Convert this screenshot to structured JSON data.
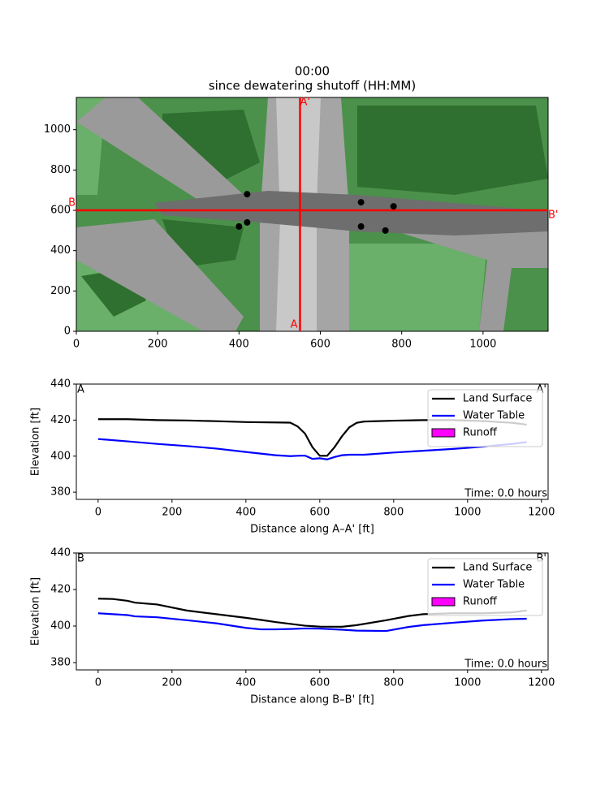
{
  "chart_data": [
    {
      "type": "map",
      "title": "00:00",
      "subtitle": "since dewatering shutoff (HH:MM)",
      "xlim": [
        0,
        1160
      ],
      "ylim": [
        0,
        1160
      ],
      "xticks": [
        0,
        200,
        400,
        600,
        800,
        1000
      ],
      "yticks": [
        0,
        200,
        400,
        600,
        800,
        1000
      ],
      "wells": {
        "color": "#000000",
        "x": [
          420,
          400,
          420,
          700,
          700,
          780,
          760
        ],
        "y": [
          680,
          520,
          540,
          640,
          520,
          620,
          500
        ]
      },
      "section_color": "#ff0000",
      "sections": [
        {
          "start_label": "A",
          "end_label": "A'",
          "x": [
            550,
            550
          ],
          "y": [
            0,
            1160
          ]
        },
        {
          "start_label": "B",
          "end_label": "B'",
          "x": [
            0,
            1160
          ],
          "y": [
            600,
            600
          ]
        }
      ]
    },
    {
      "type": "line",
      "xlabel": "Distance along A–A' [ft]",
      "ylabel": "Elevation [ft]",
      "corner_labels": [
        "A",
        "A'"
      ],
      "annotation": "Time: 0.0 hours",
      "legend": "upper right",
      "xlim": [
        -59,
        1218
      ],
      "ylim": [
        376,
        440
      ],
      "xticks": [
        0,
        200,
        400,
        600,
        800,
        1000,
        1200
      ],
      "yticks": [
        380,
        400,
        420,
        440
      ],
      "x": [
        0,
        80,
        160,
        240,
        320,
        400,
        480,
        520,
        540,
        560,
        580,
        600,
        620,
        640,
        660,
        680,
        700,
        720,
        800,
        880,
        960,
        1040,
        1120,
        1160
      ],
      "series": [
        {
          "name": "Land Surface",
          "color": "#000000",
          "values": [
            420.5,
            420.5,
            420,
            419.8,
            419.4,
            418.9,
            418.7,
            418.6,
            416.5,
            412.5,
            405,
            400.2,
            400.2,
            405,
            411,
            416,
            418.5,
            419.2,
            419.7,
            420,
            420,
            419.5,
            418.5,
            417.5
          ]
        },
        {
          "name": "Water Table",
          "color": "#0000ff",
          "values": [
            409.5,
            408.2,
            406.8,
            405.6,
            404.2,
            402.3,
            400.5,
            400,
            400.2,
            400.3,
            398.5,
            398.8,
            398.2,
            399.5,
            400.5,
            400.8,
            400.8,
            400.8,
            402,
            403,
            404,
            405.2,
            406.8,
            407.8
          ]
        },
        {
          "name": "Runoff",
          "color": "#ff00ff",
          "style": "area",
          "values": [
            null,
            null,
            null,
            null,
            null,
            null,
            null,
            null,
            null,
            null,
            null,
            null,
            null,
            null,
            null,
            null,
            null,
            null,
            null,
            null,
            null,
            null,
            null,
            null
          ]
        }
      ]
    },
    {
      "type": "line",
      "xlabel": "Distance along B–B' [ft]",
      "ylabel": "Elevation [ft]",
      "corner_labels": [
        "B",
        "B'"
      ],
      "annotation": "Time: 0.0 hours",
      "legend": "upper right",
      "xlim": [
        -59,
        1218
      ],
      "ylim": [
        376,
        440
      ],
      "xticks": [
        0,
        200,
        400,
        600,
        800,
        1000,
        1200
      ],
      "yticks": [
        380,
        400,
        420,
        440
      ],
      "x": [
        0,
        40,
        80,
        100,
        160,
        240,
        320,
        400,
        440,
        480,
        520,
        560,
        600,
        660,
        700,
        780,
        840,
        880,
        960,
        1040,
        1120,
        1160
      ],
      "series": [
        {
          "name": "Land Surface",
          "color": "#000000",
          "values": [
            415,
            414.8,
            413.8,
            412.8,
            411.8,
            408.5,
            406.5,
            404.5,
            403.4,
            402.2,
            401.2,
            400.2,
            399.7,
            399.6,
            400.5,
            403.2,
            405.5,
            406.5,
            407,
            407,
            407.5,
            408.5
          ]
        },
        {
          "name": "Water Table",
          "color": "#0000ff",
          "values": [
            407,
            406.5,
            406,
            405.3,
            404.8,
            403.2,
            401.5,
            399,
            398.2,
            398.2,
            398.4,
            398.7,
            398.6,
            398,
            397.5,
            397.3,
            399.5,
            400.5,
            401.8,
            403,
            403.8,
            404
          ]
        },
        {
          "name": "Runoff",
          "color": "#ff00ff",
          "style": "area",
          "values": [
            null,
            null,
            null,
            null,
            null,
            null,
            null,
            null,
            null,
            null,
            null,
            null,
            null,
            null,
            null,
            null,
            null,
            null,
            null,
            null,
            null,
            null
          ]
        }
      ]
    }
  ]
}
